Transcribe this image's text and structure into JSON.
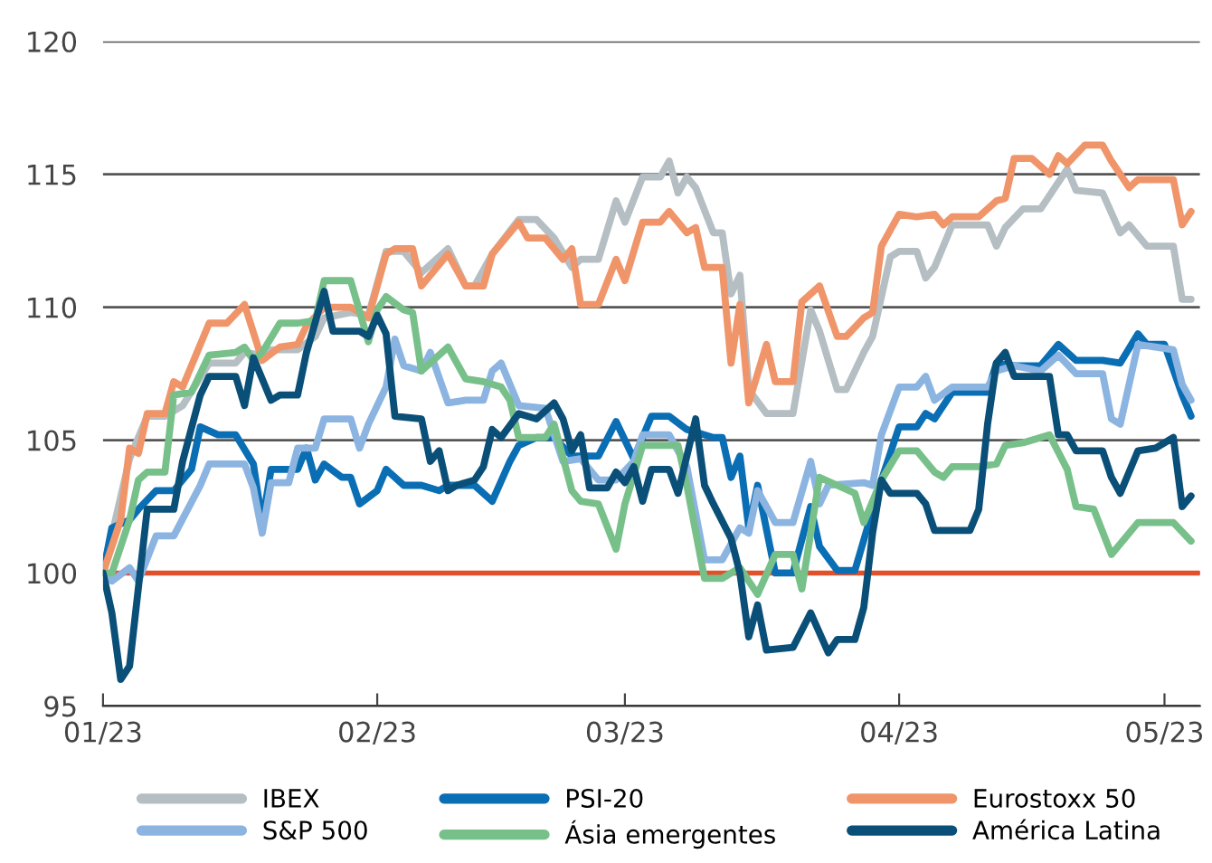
{
  "chart_data": {
    "type": "line",
    "xlim": [
      "2023-01-01",
      "2023-05-05"
    ],
    "xticks": [
      {
        "value": "2023-01-01",
        "label": "01/23"
      },
      {
        "value": "2023-02-01",
        "label": "02/23"
      },
      {
        "value": "2023-03-01",
        "label": "03/23"
      },
      {
        "value": "2023-04-01",
        "label": "04/23"
      },
      {
        "value": "2023-05-01",
        "label": "05/23"
      }
    ],
    "ylim": [
      95,
      120
    ],
    "yticks": [
      95,
      100,
      105,
      110,
      115,
      120
    ],
    "grid": "y",
    "legend": "bottom",
    "marker": "none",
    "line_style": "solid",
    "ref_lines": [
      {
        "axis": "y",
        "value": 100,
        "color": "#e0502a",
        "line_style": "solid"
      }
    ],
    "series": [
      {
        "name": "IBEX",
        "color": "#b4bec3",
        "x": [
          "2023-01-01",
          "2023-01-04",
          "2023-01-06",
          "2023-01-08",
          "2023-01-10",
          "2023-01-13",
          "2023-01-16",
          "2023-01-17",
          "2023-01-19",
          "2023-01-20",
          "2023-01-23",
          "2023-01-25",
          "2023-01-26",
          "2023-01-29",
          "2023-01-31",
          "2023-02-02",
          "2023-02-04",
          "2023-02-06",
          "2023-02-09",
          "2023-02-11",
          "2023-02-12",
          "2023-02-14",
          "2023-02-17",
          "2023-02-19",
          "2023-02-21",
          "2023-02-23",
          "2023-02-24",
          "2023-02-26",
          "2023-02-28",
          "2023-03-01",
          "2023-03-03",
          "2023-03-05",
          "2023-03-06",
          "2023-03-07",
          "2023-03-08",
          "2023-03-09",
          "2023-03-11",
          "2023-03-12",
          "2023-03-13",
          "2023-03-14",
          "2023-03-15",
          "2023-03-17",
          "2023-03-20",
          "2023-03-22",
          "2023-03-23",
          "2023-03-25",
          "2023-03-26",
          "2023-03-28",
          "2023-03-29",
          "2023-03-31",
          "2023-04-01",
          "2023-04-03",
          "2023-04-04",
          "2023-04-05",
          "2023-04-07",
          "2023-04-11",
          "2023-04-12",
          "2023-04-13",
          "2023-04-15",
          "2023-04-17",
          "2023-04-20",
          "2023-04-21",
          "2023-04-24",
          "2023-04-26",
          "2023-04-27",
          "2023-04-29",
          "2023-05-02",
          "2023-05-03",
          "2023-05-04"
        ],
        "values": [
          100,
          104.3,
          105.9,
          105.9,
          106.3,
          107.9,
          107.9,
          108.3,
          108.2,
          108.4,
          108.4,
          108.9,
          109.6,
          109.8,
          109.7,
          112.1,
          112.1,
          111.3,
          112.2,
          110.8,
          110.8,
          112,
          113.3,
          113.3,
          112.6,
          111.5,
          111.8,
          111.8,
          114,
          113.2,
          114.9,
          114.9,
          115.5,
          114.3,
          114.9,
          114.5,
          112.8,
          112.8,
          110.5,
          111.2,
          106.9,
          106,
          106,
          109.9,
          109.1,
          106.9,
          106.9,
          108.3,
          108.9,
          111.9,
          112.1,
          112.1,
          111.1,
          111.5,
          113.1,
          113.1,
          112.3,
          113,
          113.7,
          113.7,
          115.2,
          114.4,
          114.3,
          112.8,
          113.1,
          112.3,
          112.3,
          110.3,
          110.3
        ]
      },
      {
        "name": "PSI-20",
        "color": "#0a6eb4",
        "x": [
          "2023-01-01",
          "2023-01-02",
          "2023-01-04",
          "2023-01-05",
          "2023-01-07",
          "2023-01-09",
          "2023-01-11",
          "2023-01-12",
          "2023-01-14",
          "2023-01-16",
          "2023-01-18",
          "2023-01-19",
          "2023-01-20",
          "2023-01-23",
          "2023-01-24",
          "2023-01-25",
          "2023-01-26",
          "2023-01-28",
          "2023-01-29",
          "2023-01-30",
          "2023-02-01",
          "2023-02-02",
          "2023-02-04",
          "2023-02-06",
          "2023-02-08",
          "2023-02-09",
          "2023-02-12",
          "2023-02-14",
          "2023-02-16",
          "2023-02-17",
          "2023-02-19",
          "2023-02-21",
          "2023-02-23",
          "2023-02-26",
          "2023-02-28",
          "2023-03-02",
          "2023-03-04",
          "2023-03-06",
          "2023-03-08",
          "2023-03-11",
          "2023-03-12",
          "2023-03-13",
          "2023-03-14",
          "2023-03-15",
          "2023-03-16",
          "2023-03-18",
          "2023-03-20",
          "2023-03-22",
          "2023-03-23",
          "2023-03-25",
          "2023-03-27",
          "2023-03-30",
          "2023-04-01",
          "2023-04-03",
          "2023-04-04",
          "2023-04-05",
          "2023-04-07",
          "2023-04-11",
          "2023-04-12",
          "2023-04-14",
          "2023-04-17",
          "2023-04-19",
          "2023-04-21",
          "2023-04-24",
          "2023-04-26",
          "2023-04-28",
          "2023-04-29",
          "2023-05-01",
          "2023-05-03",
          "2023-05-04"
        ],
        "values": [
          100,
          101.7,
          102,
          102.4,
          103.1,
          103.1,
          103.9,
          105.5,
          105.2,
          105.2,
          104.1,
          101.9,
          103.9,
          103.9,
          104.7,
          103.5,
          104.1,
          103.6,
          103.6,
          102.6,
          103.1,
          103.9,
          103.3,
          103.3,
          103.1,
          103.3,
          103.3,
          102.7,
          104.2,
          104.8,
          105.1,
          105.1,
          104.4,
          104.4,
          105.7,
          104.3,
          105.9,
          105.9,
          105.4,
          105.1,
          105.1,
          103.6,
          104.4,
          101.7,
          103.3,
          100,
          100,
          102.5,
          101,
          100.1,
          100.1,
          103.5,
          105.5,
          105.5,
          106,
          105.8,
          106.8,
          106.8,
          107.9,
          107.8,
          107.8,
          108.6,
          108,
          108,
          107.9,
          109,
          108.6,
          108.6,
          106.7,
          105.9
        ]
      },
      {
        "name": "Eurostoxx 50",
        "color": "#f0956a",
        "x": [
          "2023-01-01",
          "2023-01-03",
          "2023-01-04",
          "2023-01-05",
          "2023-01-06",
          "2023-01-08",
          "2023-01-09",
          "2023-01-10",
          "2023-01-13",
          "2023-01-15",
          "2023-01-17",
          "2023-01-19",
          "2023-01-21",
          "2023-01-23",
          "2023-01-24",
          "2023-01-26",
          "2023-01-29",
          "2023-01-31",
          "2023-02-02",
          "2023-02-03",
          "2023-02-05",
          "2023-02-06",
          "2023-02-09",
          "2023-02-11",
          "2023-02-13",
          "2023-02-14",
          "2023-02-17",
          "2023-02-18",
          "2023-02-20",
          "2023-02-22",
          "2023-02-23",
          "2023-02-24",
          "2023-02-26",
          "2023-02-28",
          "2023-03-01",
          "2023-03-03",
          "2023-03-05",
          "2023-03-06",
          "2023-03-08",
          "2023-03-09",
          "2023-03-10",
          "2023-03-12",
          "2023-03-13",
          "2023-03-14",
          "2023-03-15",
          "2023-03-17",
          "2023-03-18",
          "2023-03-20",
          "2023-03-21",
          "2023-03-23",
          "2023-03-25",
          "2023-03-26",
          "2023-03-28",
          "2023-03-29",
          "2023-03-30",
          "2023-04-01",
          "2023-04-03",
          "2023-04-05",
          "2023-04-06",
          "2023-04-07",
          "2023-04-10",
          "2023-04-12",
          "2023-04-13",
          "2023-04-14",
          "2023-04-16",
          "2023-04-18",
          "2023-04-19",
          "2023-04-20",
          "2023-04-22",
          "2023-04-24",
          "2023-04-25",
          "2023-04-27",
          "2023-04-28",
          "2023-05-02",
          "2023-05-03",
          "2023-05-04"
        ],
        "values": [
          100,
          102,
          104.7,
          104.5,
          106,
          106,
          107.2,
          107,
          109.4,
          109.4,
          110.1,
          108,
          108.5,
          108.6,
          109.3,
          110,
          110,
          109.6,
          112,
          112.2,
          112.2,
          110.8,
          112,
          110.8,
          110.8,
          112,
          113.2,
          112.6,
          112.6,
          111.8,
          112.2,
          110.1,
          110.1,
          111.8,
          111,
          113.2,
          113.2,
          113.6,
          112.8,
          113,
          111.5,
          111.5,
          107.9,
          110.1,
          106.4,
          108.6,
          107.2,
          107.2,
          110.2,
          110.8,
          108.9,
          108.9,
          109.6,
          109.8,
          112.3,
          113.5,
          113.4,
          113.5,
          113.1,
          113.4,
          113.4,
          114,
          114.1,
          115.6,
          115.6,
          115,
          115.7,
          115.4,
          116.1,
          116.1,
          115.5,
          114.5,
          114.8,
          114.8,
          113.1,
          113.6
        ]
      },
      {
        "name": "S&P 500",
        "color": "#8cb4e1",
        "x": [
          "2023-01-01",
          "2023-01-02",
          "2023-01-04",
          "2023-01-05",
          "2023-01-07",
          "2023-01-09",
          "2023-01-12",
          "2023-01-13",
          "2023-01-17",
          "2023-01-18",
          "2023-01-19",
          "2023-01-20",
          "2023-01-22",
          "2023-01-23",
          "2023-01-25",
          "2023-01-26",
          "2023-01-29",
          "2023-01-30",
          "2023-01-31",
          "2023-02-02",
          "2023-02-03",
          "2023-02-04",
          "2023-02-06",
          "2023-02-07",
          "2023-02-09",
          "2023-02-11",
          "2023-02-13",
          "2023-02-14",
          "2023-02-15",
          "2023-02-17",
          "2023-02-20",
          "2023-02-22",
          "2023-02-24",
          "2023-02-26",
          "2023-02-28",
          "2023-03-02",
          "2023-03-03",
          "2023-03-06",
          "2023-03-08",
          "2023-03-10",
          "2023-03-12",
          "2023-03-14",
          "2023-03-15",
          "2023-03-16",
          "2023-03-18",
          "2023-03-20",
          "2023-03-22",
          "2023-03-23",
          "2023-03-24",
          "2023-03-28",
          "2023-03-29",
          "2023-03-30",
          "2023-04-01",
          "2023-04-03",
          "2023-04-04",
          "2023-04-05",
          "2023-04-07",
          "2023-04-11",
          "2023-04-12",
          "2023-04-14",
          "2023-04-17",
          "2023-04-19",
          "2023-04-21",
          "2023-04-24",
          "2023-04-25",
          "2023-04-26",
          "2023-04-28",
          "2023-05-02",
          "2023-05-03",
          "2023-05-04"
        ],
        "values": [
          100,
          99.7,
          100.2,
          99.7,
          101.4,
          101.4,
          103.3,
          104.1,
          104.1,
          103.2,
          101.5,
          103.4,
          103.4,
          104.7,
          104.7,
          105.8,
          105.8,
          104.7,
          105.6,
          107,
          108.8,
          107.8,
          107.6,
          108.3,
          106.4,
          106.5,
          106.5,
          107.6,
          107.9,
          106.3,
          106.2,
          104.2,
          104.3,
          103.5,
          103.5,
          104.2,
          105.2,
          105.2,
          104,
          100.5,
          100.5,
          101.7,
          101.5,
          103.1,
          101.9,
          101.9,
          104.2,
          102.6,
          103.3,
          103.4,
          103.3,
          105.2,
          107,
          107,
          107.4,
          106.5,
          107,
          107,
          107.6,
          107.8,
          107.6,
          108.2,
          107.5,
          107.5,
          105.8,
          105.6,
          108.6,
          108.4,
          107.1,
          106.5
        ]
      },
      {
        "name": "Ásia emergentes",
        "color": "#78c08a",
        "x": [
          "2023-01-01",
          "2023-01-02",
          "2023-01-04",
          "2023-01-05",
          "2023-01-06",
          "2023-01-08",
          "2023-01-09",
          "2023-01-11",
          "2023-01-13",
          "2023-01-16",
          "2023-01-17",
          "2023-01-18",
          "2023-01-19",
          "2023-01-21",
          "2023-01-23",
          "2023-01-25",
          "2023-01-26",
          "2023-01-29",
          "2023-01-31",
          "2023-02-01",
          "2023-02-02",
          "2023-02-04",
          "2023-02-05",
          "2023-02-06",
          "2023-02-09",
          "2023-02-11",
          "2023-02-13",
          "2023-02-15",
          "2023-02-16",
          "2023-02-17",
          "2023-02-20",
          "2023-02-21",
          "2023-02-23",
          "2023-02-24",
          "2023-02-26",
          "2023-02-28",
          "2023-03-01",
          "2023-03-03",
          "2023-03-07",
          "2023-03-08",
          "2023-03-10",
          "2023-03-12",
          "2023-03-14",
          "2023-03-16",
          "2023-03-18",
          "2023-03-20",
          "2023-03-21",
          "2023-03-23",
          "2023-03-27",
          "2023-03-28",
          "2023-03-30",
          "2023-04-01",
          "2023-04-03",
          "2023-04-05",
          "2023-04-06",
          "2023-04-07",
          "2023-04-10",
          "2023-04-12",
          "2023-04-13",
          "2023-04-15",
          "2023-04-18",
          "2023-04-20",
          "2023-04-21",
          "2023-04-23",
          "2023-04-25",
          "2023-04-28",
          "2023-05-02",
          "2023-05-04"
        ],
        "values": [
          100,
          100,
          102,
          103.5,
          103.8,
          103.8,
          106.7,
          106.8,
          108.2,
          108.3,
          108.5,
          108,
          108.3,
          109.4,
          109.4,
          109.5,
          111,
          111,
          108.7,
          109.9,
          110.4,
          109.9,
          109.8,
          107.6,
          108.5,
          107.3,
          107.2,
          107,
          106.5,
          105.1,
          105.1,
          105.6,
          103.1,
          102.7,
          102.6,
          100.9,
          102.6,
          104.8,
          104.8,
          103.3,
          99.8,
          99.8,
          100.2,
          99.2,
          100.7,
          100.7,
          99.4,
          103.6,
          103,
          101.9,
          103.5,
          104.6,
          104.6,
          103.8,
          103.6,
          104,
          104,
          104.1,
          104.8,
          104.9,
          105.2,
          103.9,
          102.5,
          102.4,
          100.7,
          101.9,
          101.9,
          101.2
        ]
      },
      {
        "name": "América Latina",
        "color": "#0a4f78",
        "x": [
          "2023-01-01",
          "2023-01-02",
          "2023-01-03",
          "2023-01-04",
          "2023-01-06",
          "2023-01-09",
          "2023-01-10",
          "2023-01-12",
          "2023-01-13",
          "2023-01-16",
          "2023-01-17",
          "2023-01-18",
          "2023-01-20",
          "2023-01-21",
          "2023-01-23",
          "2023-01-24",
          "2023-01-26",
          "2023-01-27",
          "2023-01-30",
          "2023-01-31",
          "2023-02-01",
          "2023-02-02",
          "2023-02-03",
          "2023-02-06",
          "2023-02-07",
          "2023-02-08",
          "2023-02-09",
          "2023-02-10",
          "2023-02-12",
          "2023-02-13",
          "2023-02-14",
          "2023-02-15",
          "2023-02-17",
          "2023-02-19",
          "2023-02-21",
          "2023-02-22",
          "2023-02-23",
          "2023-02-24",
          "2023-02-25",
          "2023-02-27",
          "2023-02-28",
          "2023-03-01",
          "2023-03-02",
          "2023-03-03",
          "2023-03-04",
          "2023-03-06",
          "2023-03-07",
          "2023-03-09",
          "2023-03-10",
          "2023-03-11",
          "2023-03-13",
          "2023-03-14",
          "2023-03-15",
          "2023-03-16",
          "2023-03-17",
          "2023-03-20",
          "2023-03-22",
          "2023-03-24",
          "2023-03-25",
          "2023-03-27",
          "2023-03-28",
          "2023-03-29",
          "2023-03-30",
          "2023-03-31",
          "2023-04-03",
          "2023-04-04",
          "2023-04-05",
          "2023-04-09",
          "2023-04-10",
          "2023-04-11",
          "2023-04-12",
          "2023-04-13",
          "2023-04-14",
          "2023-04-18",
          "2023-04-19",
          "2023-04-20",
          "2023-04-21",
          "2023-04-24",
          "2023-04-25",
          "2023-04-26",
          "2023-04-28",
          "2023-04-30",
          "2023-05-02",
          "2023-05-03",
          "2023-05-04"
        ],
        "values": [
          100,
          98.5,
          96,
          96.5,
          102.4,
          102.4,
          104.2,
          106.7,
          107.4,
          107.4,
          106.3,
          108.1,
          106.5,
          106.7,
          106.7,
          108.3,
          110.6,
          109.1,
          109.1,
          108.9,
          109.7,
          109,
          105.9,
          105.8,
          104.2,
          104.6,
          103.1,
          103.3,
          103.5,
          104,
          105.4,
          105.1,
          106,
          105.8,
          106.4,
          105.8,
          104.6,
          105.2,
          103.2,
          103.2,
          103.8,
          103.4,
          104,
          102.7,
          103.9,
          103.9,
          103,
          105.8,
          103.3,
          102.6,
          101.3,
          100,
          97.6,
          98.8,
          97.1,
          97.2,
          98.5,
          97,
          97.5,
          97.5,
          98.7,
          101.5,
          103.5,
          103,
          103,
          102.6,
          101.6,
          101.6,
          102.4,
          105.6,
          107.9,
          108.3,
          107.4,
          107.4,
          105.2,
          105.2,
          104.6,
          104.6,
          103.6,
          103,
          104.6,
          104.7,
          105.1,
          102.5,
          102.9
        ]
      }
    ]
  }
}
